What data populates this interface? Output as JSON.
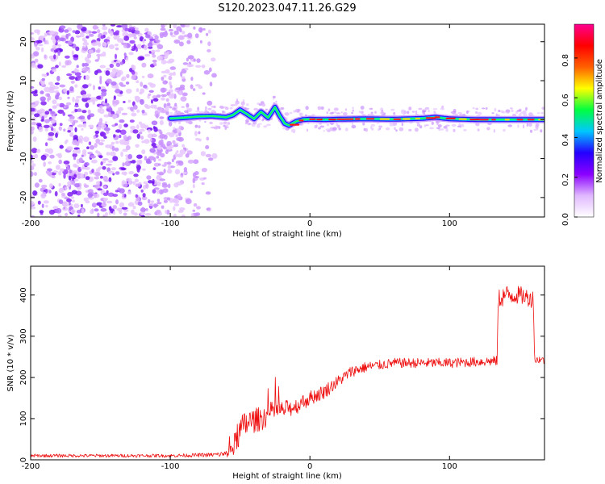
{
  "title": "S120.2023.047.11.26.G29",
  "chart_data": [
    {
      "type": "heatmap",
      "title": "S120.2023.047.11.26.G29",
      "xlabel": "Height of straight line (km)",
      "ylabel": "Frequency (Hz)",
      "xlim": [
        -200,
        168
      ],
      "ylim": [
        -25,
        24.5
      ],
      "xticks": [
        -200,
        -100,
        0,
        100
      ],
      "yticks": [
        20,
        10,
        0,
        -10,
        -20
      ],
      "noise_region_x": [
        -200,
        -68
      ],
      "colorbar": {
        "label": "Normalized spectral amplitude",
        "range": [
          0.0,
          0.97
        ],
        "ticks": [
          0.0,
          0.2,
          0.4,
          0.6,
          0.8
        ],
        "colors": [
          "#ffffff",
          "#e0b8ff",
          "#8a00ff",
          "#2400ff",
          "#00c8ff",
          "#00ff40",
          "#ffff00",
          "#ff6000",
          "#ff0000",
          "#ff0090"
        ]
      },
      "ridge": {
        "x": [
          -100,
          -90,
          -80,
          -70,
          -60,
          -55,
          -50,
          -45,
          -40,
          -35,
          -30,
          -25,
          -22,
          -18,
          -15,
          -10,
          -5,
          0,
          10,
          20,
          40,
          60,
          80,
          90,
          100,
          120,
          140,
          168
        ],
        "y": [
          0.3,
          0.5,
          0.8,
          0.9,
          0.6,
          1.2,
          2.5,
          1.4,
          0.2,
          2.0,
          0.5,
          3.2,
          1.2,
          -1.0,
          -1.5,
          -0.5,
          0.0,
          0.1,
          0.0,
          0.1,
          0.2,
          0.1,
          0.3,
          0.6,
          0.2,
          0.0,
          0.0,
          0.0
        ]
      }
    },
    {
      "type": "line",
      "xlabel": "Height of straight line (km)",
      "ylabel": "SNR (10 * v/v)",
      "xlim": [
        -200,
        168
      ],
      "ylim": [
        0,
        470
      ],
      "xticks": [
        -200,
        -100,
        0,
        100
      ],
      "yticks": [
        0,
        100,
        200,
        300,
        400
      ],
      "series": [
        {
          "name": "SNR",
          "color": "#ee1010",
          "x": [
            -200,
            -150,
            -100,
            -70,
            -60,
            -55,
            -50,
            -45,
            -40,
            -35,
            -30,
            -25,
            -20,
            -15,
            -10,
            -5,
            0,
            10,
            20,
            30,
            40,
            50,
            60,
            80,
            100,
            120,
            134,
            135,
            140,
            150,
            160,
            161,
            165,
            168
          ],
          "y": [
            10,
            10,
            10,
            12,
            14,
            30,
            70,
            90,
            95,
            100,
            110,
            120,
            120,
            125,
            130,
            140,
            150,
            165,
            190,
            215,
            225,
            230,
            235,
            235,
            235,
            238,
            240,
            390,
            400,
            400,
            390,
            240,
            245,
            240
          ],
          "noise": [
            4,
            4,
            4,
            5,
            8,
            25,
            35,
            35,
            30,
            30,
            28,
            25,
            22,
            22,
            20,
            20,
            18,
            18,
            15,
            14,
            13,
            12,
            12,
            12,
            12,
            12,
            12,
            25,
            25,
            22,
            22,
            10,
            10,
            10
          ]
        }
      ]
    }
  ]
}
